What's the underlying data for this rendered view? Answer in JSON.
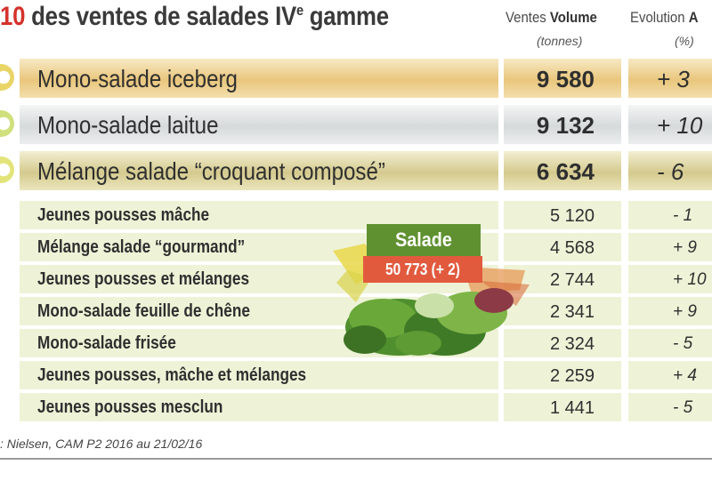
{
  "title": {
    "prefix": "10",
    "text": " des ventes de salades IV",
    "sup": "e",
    "suffix": " gamme"
  },
  "headers": {
    "volume_pre": "Ventes ",
    "volume_bold": "Volume",
    "volume_unit": "(tonnes)",
    "evolution_pre": "Evolution ",
    "evolution_bold": "A",
    "evolution_unit": "(%)"
  },
  "badge": {
    "label": "Salade",
    "value": "50 773 (+ 2)"
  },
  "source": ": Nielsen, CAM P2 2016 au 21/02/16",
  "colors": {
    "gold": "#e9c67c",
    "grey": "#dcdfe0",
    "olive": "#d8cf94",
    "green_light": "#eef3d7",
    "badge_green": "#5f9131",
    "badge_red": "#e25a3e",
    "title_red": "#d4322b"
  },
  "chart_data": {
    "type": "table",
    "columns": [
      "",
      "Ventes Volume (tonnes)",
      "Evolution A (%)"
    ],
    "rows": [
      {
        "label": "Mono-salade iceberg",
        "volume": "9 580",
        "evolution": "+ 3"
      },
      {
        "label": "Mono-salade laitue",
        "volume": "9 132",
        "evolution": "+ 10"
      },
      {
        "label": "Mélange salade “croquant composé”",
        "volume": "6 634",
        "evolution": "- 6"
      },
      {
        "label": "Jeunes pousses mâche",
        "volume": "5 120",
        "evolution": "- 1"
      },
      {
        "label": "Mélange salade “gourmand”",
        "volume": "4 568",
        "evolution": "+ 9"
      },
      {
        "label": "Jeunes pousses et mélanges",
        "volume": "2 744",
        "evolution": "+ 10"
      },
      {
        "label": "Mono-salade feuille de chêne",
        "volume": "2 341",
        "evolution": "+ 9"
      },
      {
        "label": "Mono-salade frisée",
        "volume": "2 324",
        "evolution": "- 5"
      },
      {
        "label": "Jeunes pousses, mâche et mélanges",
        "volume": "2 259",
        "evolution": "+ 4"
      },
      {
        "label": "Jeunes pousses mesclun",
        "volume": "1 441",
        "evolution": "- 5"
      }
    ]
  }
}
